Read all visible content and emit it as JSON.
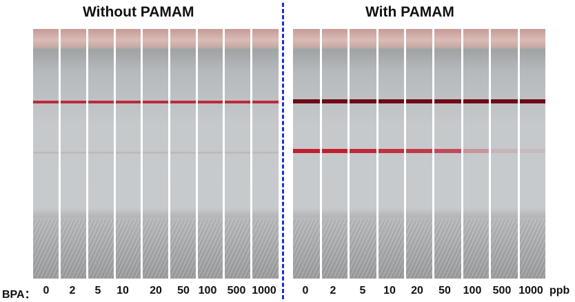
{
  "titles": {
    "left": "Without PAMAM",
    "right": "With PAMAM"
  },
  "axis": {
    "analyte_label": "BPA：",
    "unit": "ppb"
  },
  "left_panel": {
    "concentrations": [
      "0",
      "2",
      "5",
      "10",
      "20",
      "50",
      "100",
      "500",
      "1000"
    ],
    "control_line_color": "#c0283a",
    "test_line_visible": false
  },
  "right_panel": {
    "concentrations": [
      "0",
      "2",
      "5",
      "10",
      "20",
      "50",
      "100",
      "500",
      "1000"
    ],
    "control_line_color": "#6e0b16",
    "test_line_color": "#c11e30",
    "test_line_intensity": [
      1.0,
      1.0,
      0.95,
      0.9,
      0.85,
      0.75,
      0.3,
      0.12,
      0.08
    ]
  },
  "divider_color": "#1a2fd4"
}
